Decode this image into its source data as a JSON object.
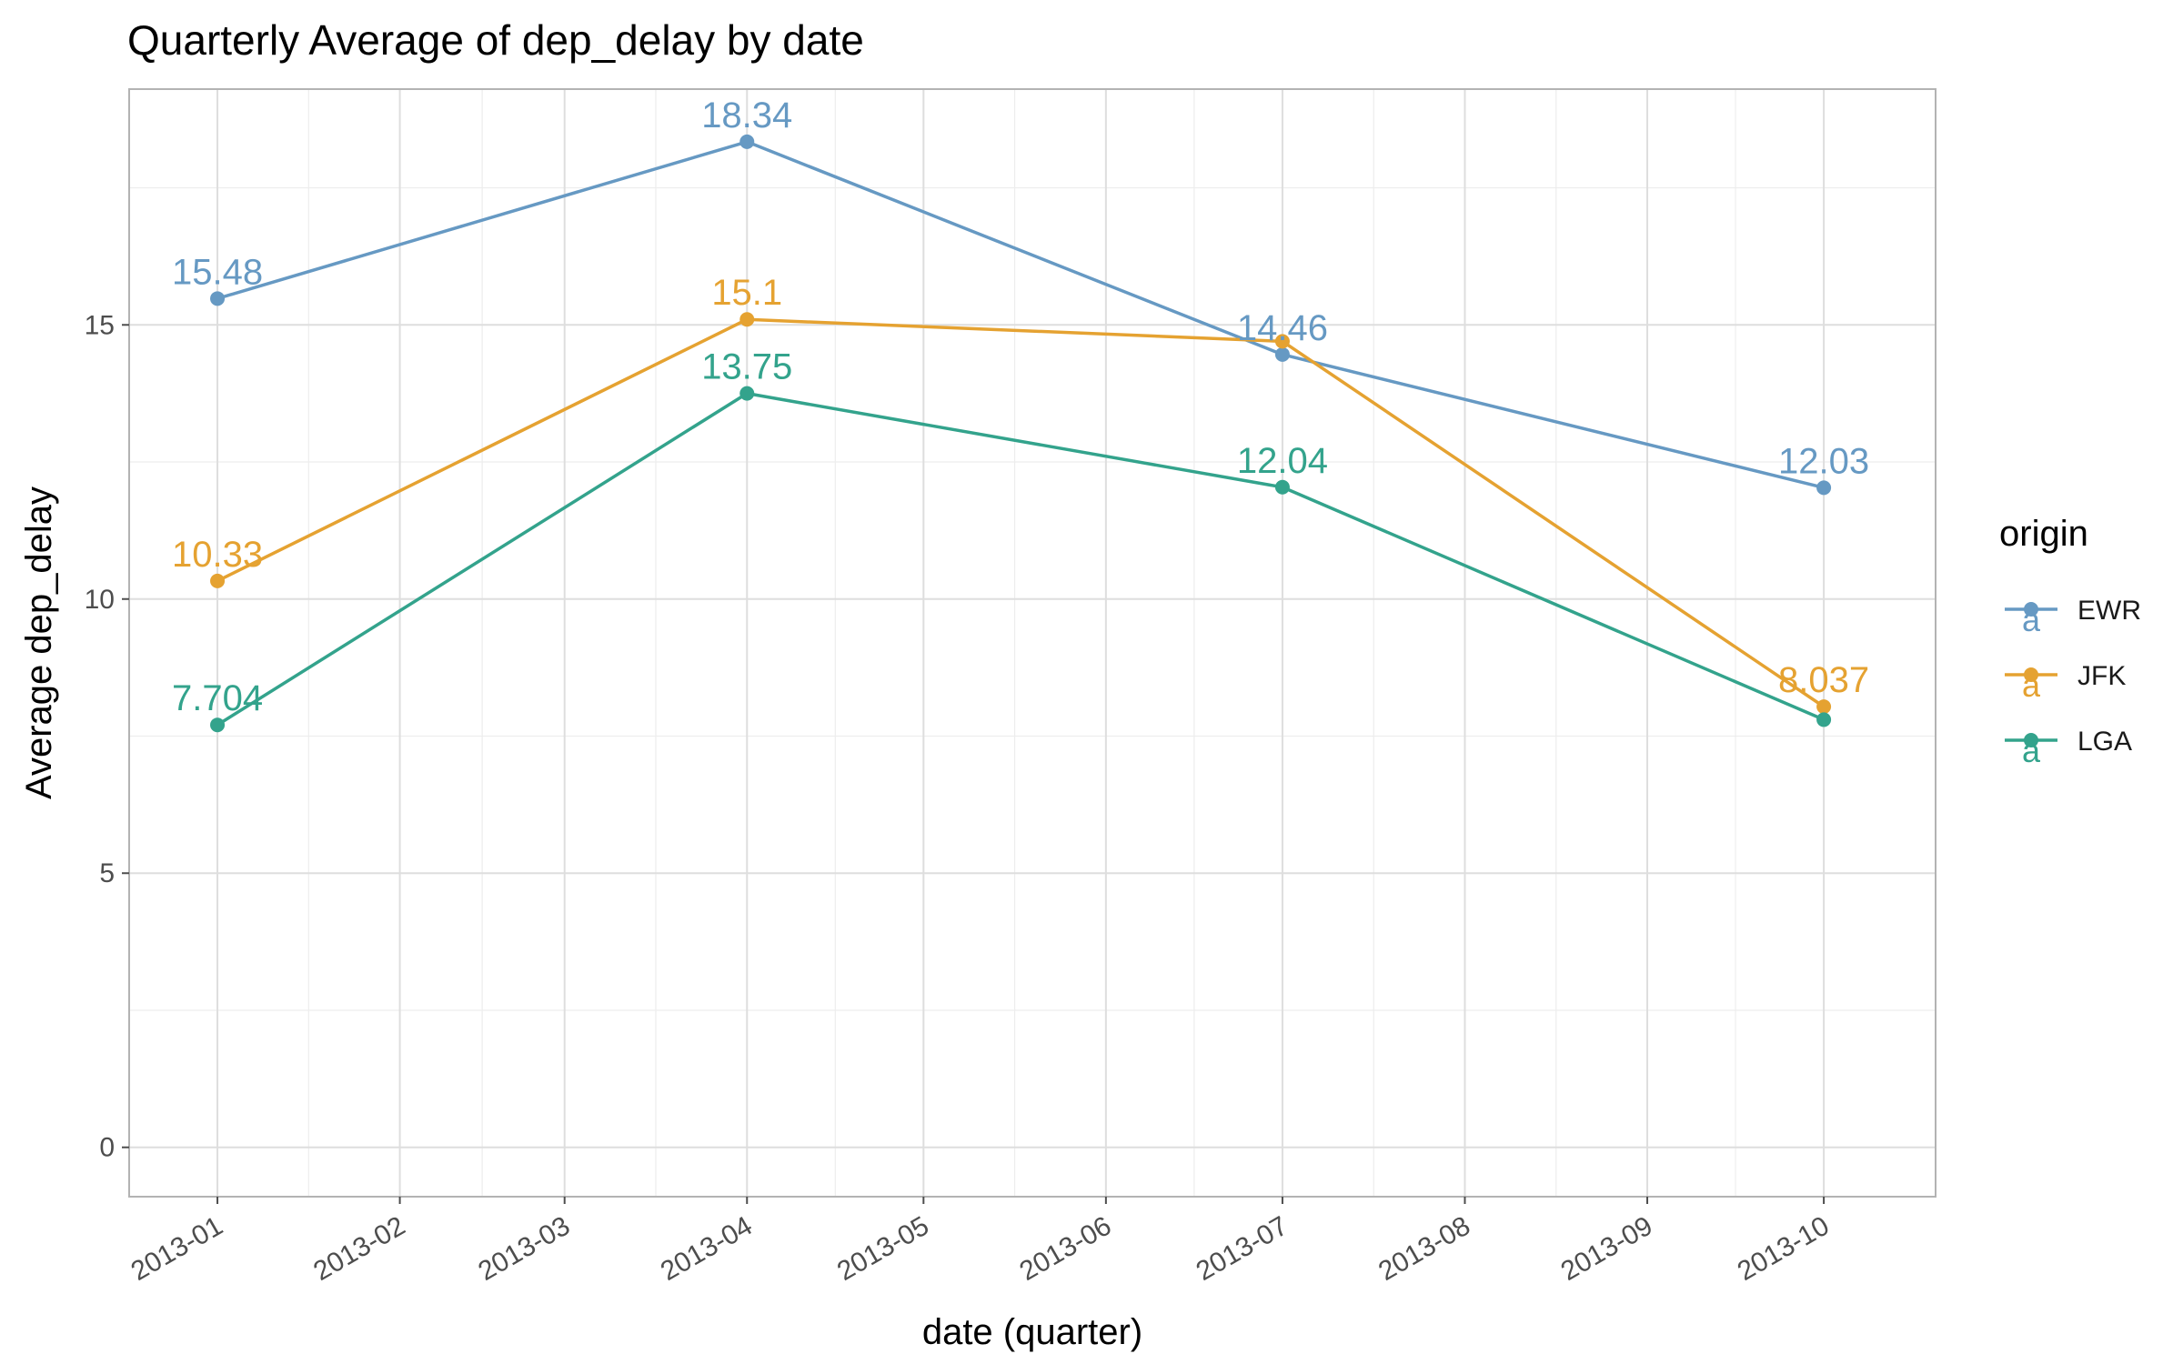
{
  "chart_data": {
    "type": "line",
    "title": "Quarterly Average of dep_delay by date",
    "xlabel": "date (quarter)",
    "ylabel": "Average dep_delay",
    "x_domain": [
      "2012-12-17",
      "2013-10-20"
    ],
    "ylim": [
      -0.9,
      19.3
    ],
    "y_ticks": [
      0,
      5,
      10,
      15
    ],
    "x_ticks": [
      "2013-01-01",
      "2013-02-01",
      "2013-03-01",
      "2013-04-01",
      "2013-05-01",
      "2013-06-01",
      "2013-07-01",
      "2013-08-01",
      "2013-09-01",
      "2013-10-01"
    ],
    "x_tick_labels": [
      "2013-01",
      "2013-02",
      "2013-03",
      "2013-04",
      "2013-05",
      "2013-06",
      "2013-07",
      "2013-08",
      "2013-09",
      "2013-10"
    ],
    "grid": true,
    "legend": {
      "title": "origin",
      "position": "right"
    },
    "series": [
      {
        "name": "EWR",
        "color": "#6699c3",
        "x": [
          "2013-01-01",
          "2013-04-01",
          "2013-07-01",
          "2013-10-01"
        ],
        "values": [
          15.48,
          18.34,
          14.46,
          12.03
        ],
        "labels": [
          "15.48",
          "18.34",
          "14.46",
          "12.03"
        ]
      },
      {
        "name": "JFK",
        "color": "#e5a231",
        "x": [
          "2013-01-01",
          "2013-04-01",
          "2013-07-01",
          "2013-10-01"
        ],
        "values": [
          10.33,
          15.1,
          14.7,
          8.037
        ],
        "labels": [
          "10.33",
          "15.1",
          "",
          "8.037"
        ]
      },
      {
        "name": "LGA",
        "color": "#33a38c",
        "x": [
          "2013-01-01",
          "2013-04-01",
          "2013-07-01",
          "2013-10-01"
        ],
        "values": [
          7.704,
          13.75,
          12.04,
          7.8
        ],
        "labels": [
          "7.704",
          "13.75",
          "12.04",
          ""
        ]
      }
    ]
  }
}
